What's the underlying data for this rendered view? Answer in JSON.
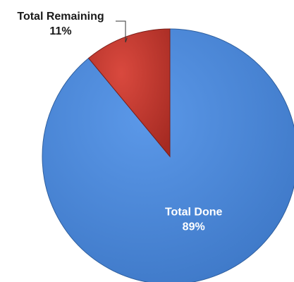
{
  "chart_data": {
    "type": "pie",
    "title": "",
    "slices": [
      {
        "label": "Total Done",
        "value": 89,
        "value_label": "89%",
        "color": "#4a86d8",
        "edge_color": "#2f5f9e"
      },
      {
        "label": "Total Remaining",
        "value": 11,
        "value_label": "11%",
        "color": "#c0392f",
        "edge_color": "#7a1f1a"
      }
    ],
    "legend": "none",
    "start_angle": "12 o'clock",
    "direction": "clockwise",
    "label_colors": {
      "Total Done": "#ffffff",
      "Total Remaining": "#1a1a1a"
    }
  }
}
